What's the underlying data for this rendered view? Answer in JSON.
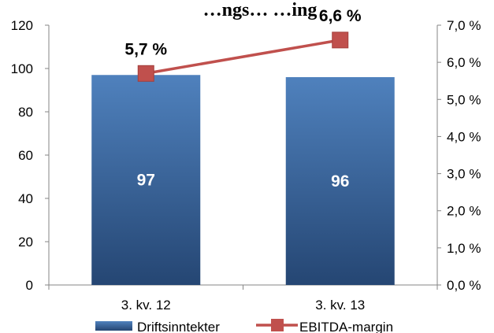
{
  "chart_data": {
    "type": "bar",
    "title": "…ngs… …ing",
    "categories": [
      "3. kv. 12",
      "3. kv. 13"
    ],
    "series": [
      {
        "name": "Driftsinntekter",
        "axis": "left",
        "kind": "bar",
        "values": [
          97,
          96
        ],
        "value_labels": [
          "97",
          "96"
        ]
      },
      {
        "name": "EBITDA-margin",
        "axis": "right",
        "kind": "line",
        "values": [
          5.7,
          6.6
        ],
        "value_labels": [
          "5,7 %",
          "6,6 %"
        ]
      }
    ],
    "ylim_left": [
      0,
      120
    ],
    "yticks_left": [
      "0",
      "20",
      "40",
      "60",
      "80",
      "100",
      "120"
    ],
    "ylim_right": [
      0,
      7
    ],
    "yticks_right": [
      "0,0 %",
      "1,0 %",
      "2,0 %",
      "3,0 %",
      "4,0 %",
      "5,0 %",
      "6,0 %",
      "7,0 %"
    ],
    "grid": false,
    "legend": "bottom",
    "colors": {
      "bar_top": "#4f81bd",
      "bar_bottom": "#254673",
      "line": "#c0504d",
      "marker": "#c0504d"
    }
  }
}
